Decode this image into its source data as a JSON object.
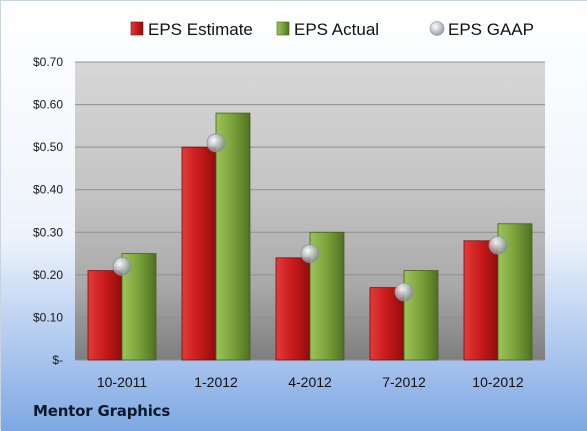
{
  "company_label": "Mentor Graphics",
  "colors": {
    "estimate": "#cc1f1f",
    "actual": "#7aa23a",
    "gaap": "#b9c0c9",
    "plot_bg": "#c9c9c9",
    "page_bg_top": "#ffffff",
    "page_bg_bottom": "#7ea8e4"
  },
  "chart_data": {
    "type": "bar",
    "categories": [
      "10-2011",
      "1-2012",
      "4-2012",
      "7-2012",
      "10-2012"
    ],
    "series": [
      {
        "name": "EPS Estimate",
        "kind": "bar",
        "values": [
          0.21,
          0.5,
          0.24,
          0.17,
          0.28
        ]
      },
      {
        "name": "EPS Actual",
        "kind": "bar",
        "values": [
          0.25,
          0.58,
          0.3,
          0.21,
          0.32
        ]
      },
      {
        "name": "EPS GAAP",
        "kind": "marker",
        "values": [
          0.22,
          0.51,
          0.25,
          0.16,
          0.27
        ]
      }
    ],
    "ylim": [
      0,
      0.7
    ],
    "yticks": [
      0,
      0.1,
      0.2,
      0.3,
      0.4,
      0.5,
      0.6,
      0.7
    ],
    "ytick_labels": [
      "$-",
      "$0.10",
      "$0.20",
      "$0.30",
      "$0.40",
      "$0.50",
      "$0.60",
      "$0.70"
    ],
    "grid": true,
    "legend_position": "top"
  }
}
